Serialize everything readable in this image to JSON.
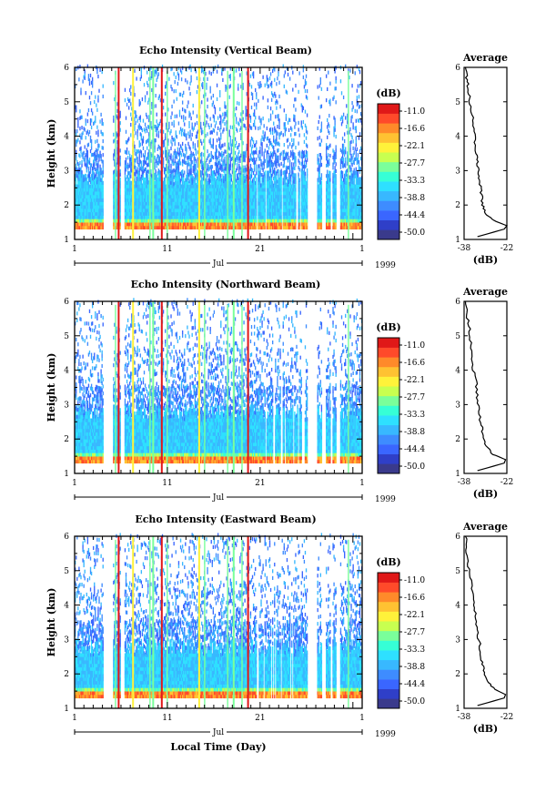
{
  "xlabel": "Local Time (Day)",
  "colors": [
    "#3a3a8c",
    "#2f3fc8",
    "#3a66ff",
    "#3e8cff",
    "#38b8ff",
    "#2ee0ff",
    "#36ffd6",
    "#7aff9a",
    "#c8ff50",
    "#fff23a",
    "#ffc232",
    "#ff8a2a",
    "#ff4a2a",
    "#e01818"
  ],
  "chart_data": [
    {
      "type": "heatmap",
      "title": "Echo Intensity (Vertical Beam)",
      "ylabel": "Height (km)",
      "ylim": [
        1,
        6
      ],
      "yticks": [
        "1",
        "2",
        "3",
        "4",
        "5",
        "6"
      ],
      "xticks": [
        "1",
        "11",
        "21",
        "1"
      ],
      "month_label": "Jul",
      "year_label": "1999",
      "colorbar": {
        "unit": "(dB)",
        "levels": [
          "-11.0",
          "-16.6",
          "-22.1",
          "-27.7",
          "-33.3",
          "-38.8",
          "-44.4",
          "-50.0"
        ]
      },
      "average": {
        "title": "Average",
        "xlabel": "(dB)",
        "xticks": [
          "-38",
          "-22"
        ],
        "xlim": [
          -38,
          -22
        ],
        "ylim": [
          1,
          6
        ],
        "profile": [
          [
            -33,
            1.08
          ],
          [
            -23,
            1.3
          ],
          [
            -22,
            1.4
          ],
          [
            -27,
            1.55
          ],
          [
            -30,
            1.75
          ],
          [
            -31,
            2.0
          ],
          [
            -31.5,
            2.3
          ],
          [
            -32,
            2.6
          ],
          [
            -32.5,
            2.9
          ],
          [
            -33,
            3.2
          ],
          [
            -33.5,
            3.5
          ],
          [
            -34,
            3.9
          ],
          [
            -34.5,
            4.3
          ],
          [
            -35,
            4.7
          ],
          [
            -36,
            5.1
          ],
          [
            -36.5,
            5.4
          ],
          [
            -37,
            5.7
          ],
          [
            -37.5,
            6.0
          ]
        ]
      }
    },
    {
      "type": "heatmap",
      "title": "Echo Intensity (Northward Beam)",
      "ylabel": "Height (km)",
      "ylim": [
        1,
        6
      ],
      "yticks": [
        "1",
        "2",
        "3",
        "4",
        "5",
        "6"
      ],
      "xticks": [
        "1",
        "11",
        "21",
        "1"
      ],
      "month_label": "Jul",
      "year_label": "1999",
      "colorbar": {
        "unit": "(dB)",
        "levels": [
          "-11.0",
          "-16.6",
          "-22.1",
          "-27.7",
          "-33.3",
          "-38.8",
          "-44.4",
          "-50.0"
        ]
      },
      "average": {
        "title": "Average",
        "xlabel": "(dB)",
        "xticks": [
          "-38",
          "-22"
        ],
        "xlim": [
          -38,
          -22
        ],
        "ylim": [
          1,
          6
        ],
        "profile": [
          [
            -33,
            1.08
          ],
          [
            -23,
            1.3
          ],
          [
            -22.5,
            1.4
          ],
          [
            -27,
            1.55
          ],
          [
            -30,
            1.8
          ],
          [
            -31,
            2.1
          ],
          [
            -31.5,
            2.4
          ],
          [
            -32.5,
            2.8
          ],
          [
            -33,
            3.2
          ],
          [
            -33.5,
            3.6
          ],
          [
            -34.5,
            4.0
          ],
          [
            -35,
            4.4
          ],
          [
            -35.5,
            4.8
          ],
          [
            -36,
            5.2
          ],
          [
            -37,
            5.6
          ],
          [
            -37.5,
            6.0
          ]
        ]
      }
    },
    {
      "type": "heatmap",
      "title": "Echo Intensity (Eastward Beam)",
      "ylabel": "Height (km)",
      "ylim": [
        1,
        6
      ],
      "yticks": [
        "1",
        "2",
        "3",
        "4",
        "5",
        "6"
      ],
      "xticks": [
        "1",
        "11",
        "21",
        "1"
      ],
      "month_label": "Jul",
      "year_label": "1999",
      "colorbar": {
        "unit": "(dB)",
        "levels": [
          "-11.0",
          "-16.6",
          "-22.1",
          "-27.7",
          "-33.3",
          "-38.8",
          "-44.4",
          "-50.0"
        ]
      },
      "average": {
        "title": "Average",
        "xlabel": "(dB)",
        "xticks": [
          "-38",
          "-22"
        ],
        "xlim": [
          -38,
          -22
        ],
        "ylim": [
          1,
          6
        ],
        "profile": [
          [
            -33,
            1.08
          ],
          [
            -23,
            1.3
          ],
          [
            -22.5,
            1.4
          ],
          [
            -26.5,
            1.55
          ],
          [
            -29.5,
            1.8
          ],
          [
            -30.5,
            2.1
          ],
          [
            -31.5,
            2.4
          ],
          [
            -32,
            2.8
          ],
          [
            -33,
            3.2
          ],
          [
            -33.5,
            3.6
          ],
          [
            -34,
            4.0
          ],
          [
            -35,
            4.4
          ],
          [
            -35.5,
            4.8
          ],
          [
            -36.5,
            5.2
          ],
          [
            -37,
            5.6
          ],
          [
            -37.5,
            6.0
          ]
        ]
      }
    }
  ]
}
